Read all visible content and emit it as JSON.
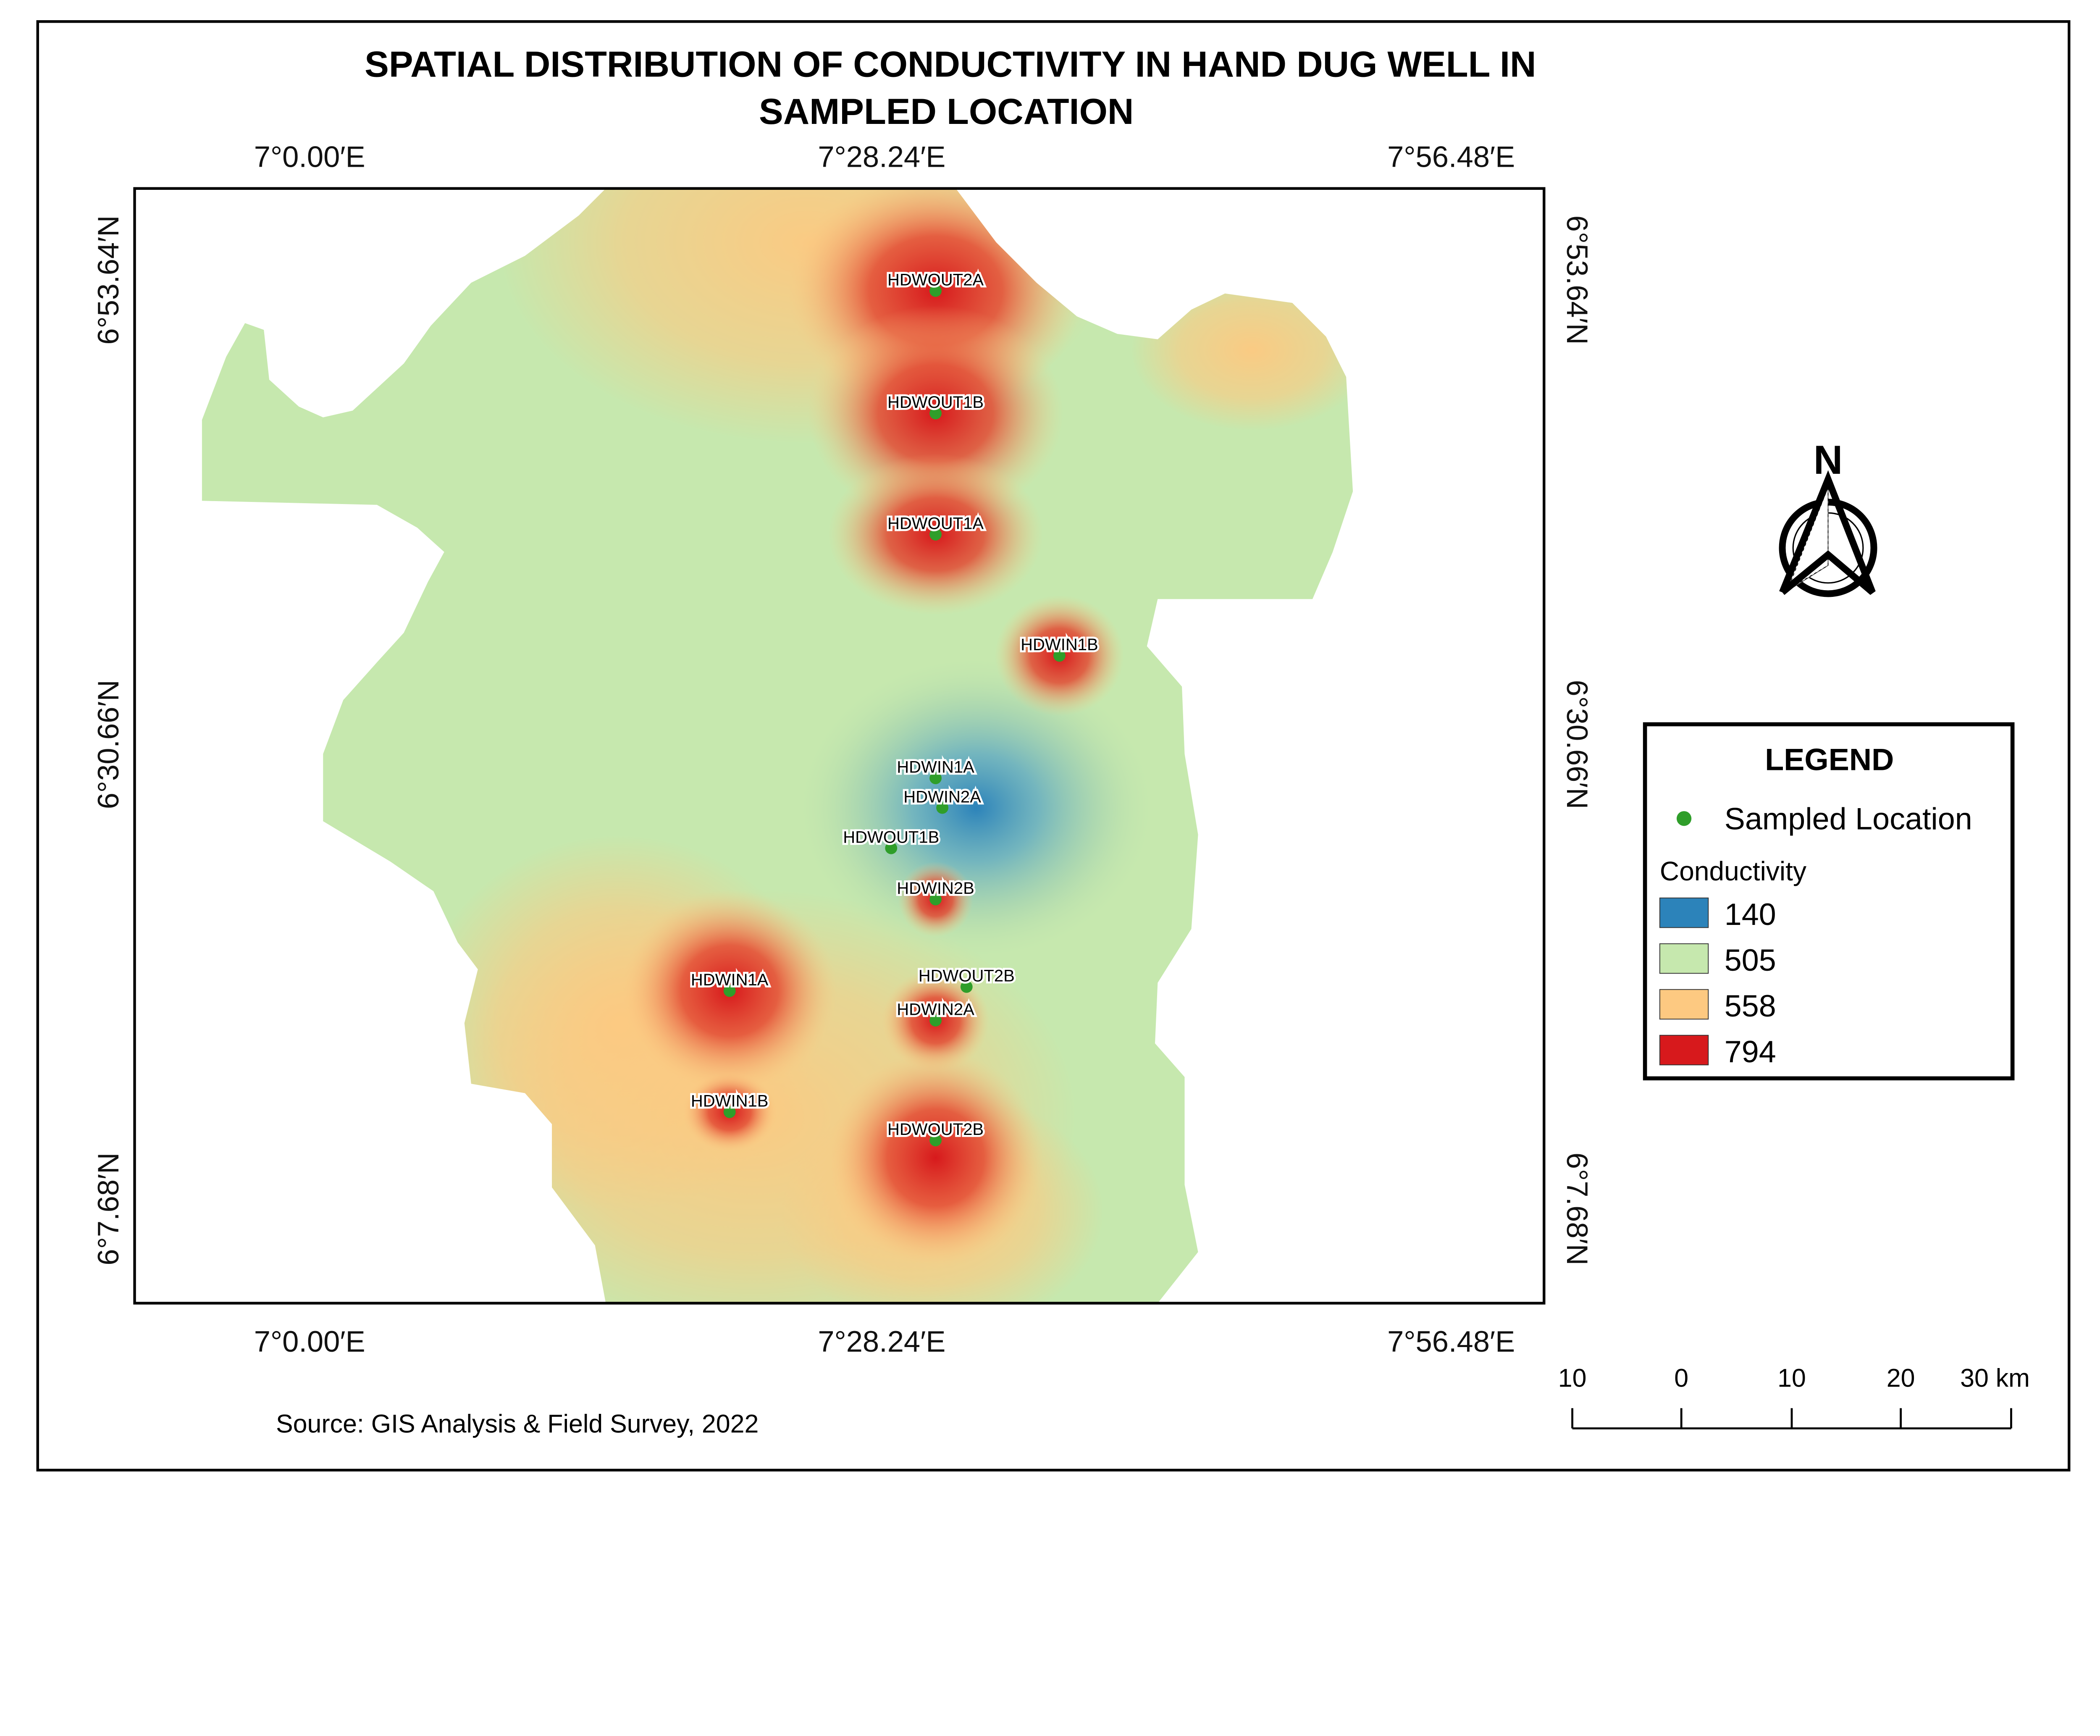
{
  "title_line1": "SPATIAL DISTRIBUTION OF CONDUCTIVITY IN HAND DUG WELL IN",
  "title_line2": "SAMPLED LOCATION",
  "axes": {
    "longitude_ticks": [
      "7°0.00′E",
      "7°28.24′E",
      "7°56.48′E"
    ],
    "latitude_ticks": [
      "6°53.64′N",
      "6°30.66′N",
      "6°7.68′N"
    ]
  },
  "sample_points": [
    "HDWOUT2A",
    "HDWOUT1B",
    "HDWOUT1A",
    "HDWIN1B",
    "HDWIN1A",
    "HDWIN2A",
    "HDWOUT1B",
    "HDWIN2B",
    "HDWOUT2B",
    "HDWIN2A",
    "HDWIN1A",
    "HDWIN1B",
    "HDWOUT2B"
  ],
  "north_arrow": {
    "label": "N",
    "icon": "north-arrow-icon"
  },
  "legend": {
    "title": "LEGEND",
    "point_label": "Sampled Location",
    "point_color": "#2f9e2a",
    "ramp_title": "Conductivity",
    "classes": [
      {
        "value": "140",
        "color": "#2c83ba"
      },
      {
        "value": "505",
        "color": "#c6e8ae"
      },
      {
        "value": "558",
        "color": "#fdc981"
      },
      {
        "value": "794",
        "color": "#d7191c"
      }
    ]
  },
  "scale_bar": {
    "labels": [
      "10",
      "0",
      "10",
      "20",
      "30 km"
    ]
  },
  "source": "Source: GIS Analysis & Field Survey, 2022"
}
